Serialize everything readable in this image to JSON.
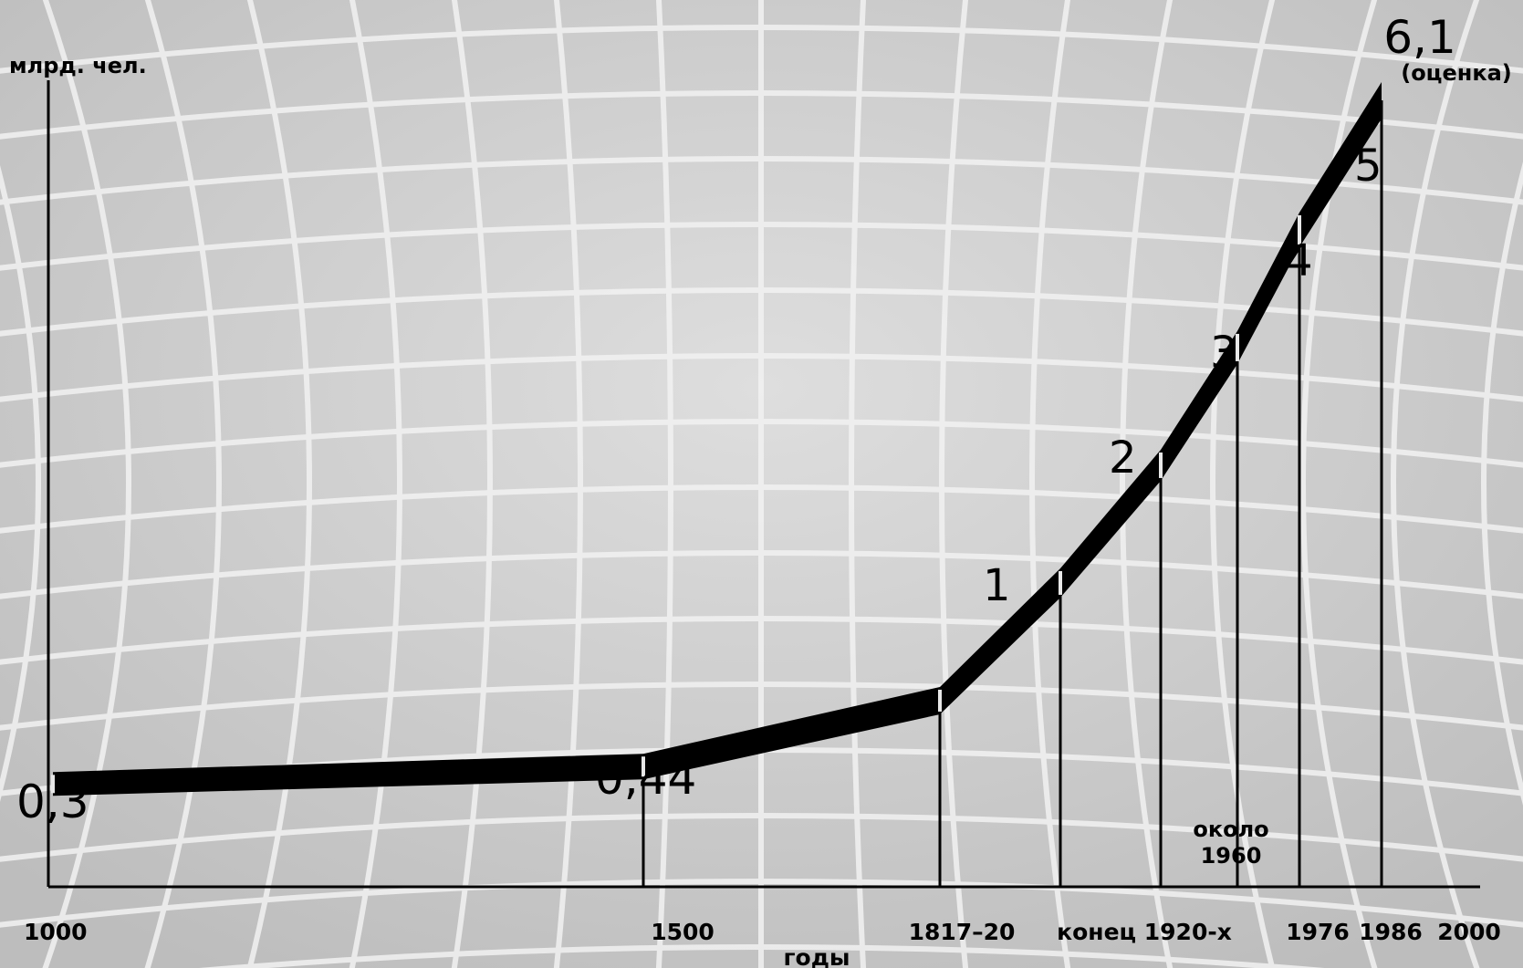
{
  "chart_data": {
    "type": "line",
    "ylabel": "млрд. чел.",
    "xlabel": "годы",
    "x": [
      "1000",
      "1500",
      "1817–20",
      "конец 1920-х",
      "около 1960",
      "1976",
      "1986",
      "2000"
    ],
    "values": [
      0.3,
      0.44,
      1,
      2,
      3,
      4,
      5,
      6.1
    ],
    "point_labels": [
      "0,3",
      "0,44",
      "1",
      "2",
      "3",
      "4",
      "5",
      "6,1"
    ],
    "annotations": {
      "estimate_note": "(оценка)",
      "around_1960_line1": "около",
      "around_1960_line2": "1960"
    },
    "tick_labels": {
      "t1000": "1000",
      "t1500": "1500",
      "t1817": "1817–20",
      "t1920": "конец 1920-х",
      "t1976": "1976",
      "t1986": "1986",
      "t2000": "2000"
    },
    "colors": {
      "band": "#000000",
      "background": "#cfcfcf",
      "grid": "#f2f2f2"
    },
    "grid": true
  }
}
